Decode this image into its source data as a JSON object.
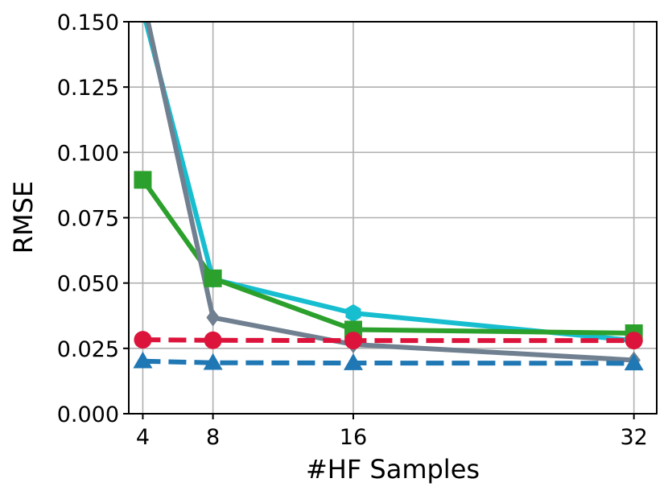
{
  "chart_data": {
    "type": "line",
    "xlabel": "#HF Samples",
    "ylabel": "RMSE",
    "x": [
      4,
      8,
      16,
      32
    ],
    "xlim": [
      3.2,
      33.3
    ],
    "ylim": [
      0.0,
      0.15
    ],
    "xticks": [
      4,
      8,
      16,
      32
    ],
    "xtick_labels": [
      "4",
      "8",
      "16",
      "32"
    ],
    "yticks": [
      0.0,
      0.025,
      0.05,
      0.075,
      0.1,
      0.125,
      0.15
    ],
    "ytick_labels": [
      "0.000",
      "0.025",
      "0.050",
      "0.075",
      "0.100",
      "0.125",
      "0.150"
    ],
    "grid": true,
    "series": [
      {
        "values": [
          0.1545,
          0.0515,
          0.0385,
          0.028
        ],
        "color": "#17becf",
        "marker": "hexagon",
        "linestyle": "solid"
      },
      {
        "values": [
          0.0895,
          0.0518,
          0.0322,
          0.0308
        ],
        "color": "#2ca02c",
        "marker": "square",
        "linestyle": "solid"
      },
      {
        "values": [
          0.159,
          0.0368,
          0.0265,
          0.0205
        ],
        "color": "#708090",
        "marker": "diamond",
        "linestyle": "solid"
      },
      {
        "values": [
          0.0283,
          0.0281,
          0.028,
          0.028
        ],
        "color": "#dc143c",
        "marker": "circle",
        "linestyle": "dashed"
      },
      {
        "values": [
          0.0201,
          0.0195,
          0.0194,
          0.0193
        ],
        "color": "#1f77b4",
        "marker": "triangle",
        "linestyle": "dashed"
      }
    ]
  }
}
